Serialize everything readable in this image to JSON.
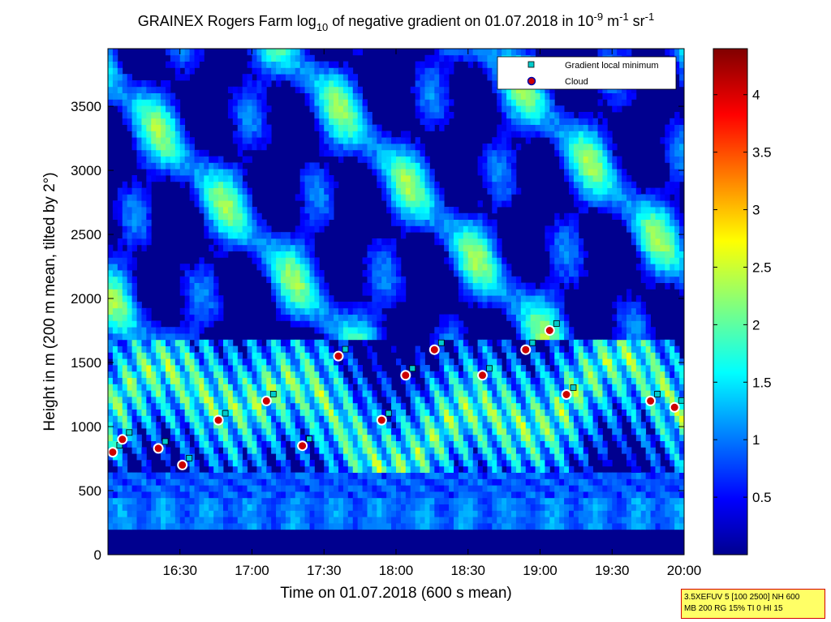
{
  "title": {
    "pre": "GRAINEX Rogers Farm log",
    "sub": "10",
    "mid": " of negative gradient on 01.07.2018 in 10",
    "sup1": "-9",
    "mid2": " m",
    "sup2": "-1",
    "mid3": " sr",
    "sup3": "-1"
  },
  "xlabel": "Time on 01.07.2018 (600 s mean)",
  "ylabel": "Height in m (200 m mean, tilted by 2°)",
  "settings_text": [
    "3.5XEFUV 5 [100 2500] NH 600",
    "MB 200 RG 15% TI 0 HI 15"
  ],
  "legend": [
    {
      "label": "Gradient local minimum",
      "symbol": "square",
      "color": "#00cccc"
    },
    {
      "label": "Cloud",
      "symbol": "circle",
      "color": "#cc0000"
    }
  ],
  "chart_data": {
    "type": "heatmap",
    "x_range": [
      "16:04",
      "20:04"
    ],
    "x_ticks": [
      "16:30",
      "17:00",
      "17:30",
      "18:00",
      "18:30",
      "19:00",
      "19:30",
      "20:00"
    ],
    "x_tick_minutes": [
      30,
      60,
      90,
      120,
      150,
      180,
      210,
      240
    ],
    "ylim": [
      0,
      3950
    ],
    "y_ticks": [
      0,
      500,
      1000,
      1500,
      2000,
      2500,
      3000,
      3500
    ],
    "colorbar": {
      "range": [
        0,
        4.4
      ],
      "ticks": [
        0.5,
        1,
        1.5,
        2,
        2.5,
        3,
        3.5,
        4
      ],
      "colormap": "jet"
    },
    "cloud_base_heights_sample": [
      {
        "time": "16:06",
        "height": 800
      },
      {
        "time": "16:10",
        "height": 900
      },
      {
        "time": "16:25",
        "height": 830
      },
      {
        "time": "16:35",
        "height": 700
      },
      {
        "time": "16:50",
        "height": 1050
      },
      {
        "time": "17:10",
        "height": 1200
      },
      {
        "time": "17:25",
        "height": 850
      },
      {
        "time": "17:40",
        "height": 1550
      },
      {
        "time": "17:58",
        "height": 1050
      },
      {
        "time": "18:08",
        "height": 1400
      },
      {
        "time": "18:20",
        "height": 1600
      },
      {
        "time": "18:40",
        "height": 1400
      },
      {
        "time": "18:58",
        "height": 1600
      },
      {
        "time": "19:08",
        "height": 1750
      },
      {
        "time": "19:15",
        "height": 1250
      },
      {
        "time": "19:50",
        "height": 1200
      },
      {
        "time": "20:00",
        "height": 1150
      }
    ]
  }
}
